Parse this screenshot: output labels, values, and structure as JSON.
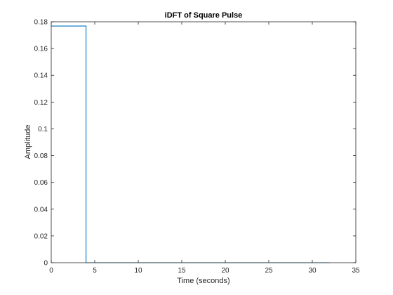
{
  "chart_data": {
    "type": "line",
    "title": "iDFT of Square Pulse",
    "xlabel": "Time (seconds)",
    "ylabel": "Amplitude",
    "xlim": [
      0,
      35
    ],
    "ylim": [
      0,
      0.18
    ],
    "xticks": [
      0,
      5,
      10,
      15,
      20,
      25,
      30,
      35
    ],
    "yticks": [
      0,
      0.02,
      0.04,
      0.06,
      0.08,
      0.1,
      0.12,
      0.14,
      0.16,
      0.18
    ],
    "xtick_labels": [
      "0",
      "5",
      "10",
      "15",
      "20",
      "25",
      "30",
      "35"
    ],
    "ytick_labels": [
      "0",
      "0.02",
      "0.04",
      "0.06",
      "0.08",
      "0.1",
      "0.12",
      "0.14",
      "0.16",
      "0.18"
    ],
    "grid": false,
    "box": true,
    "line_style": "stairs",
    "series": [
      {
        "color": "#0072BD",
        "x": [
          0,
          4,
          4,
          32
        ],
        "y": [
          0.1768,
          0.1768,
          0,
          0
        ]
      }
    ]
  }
}
